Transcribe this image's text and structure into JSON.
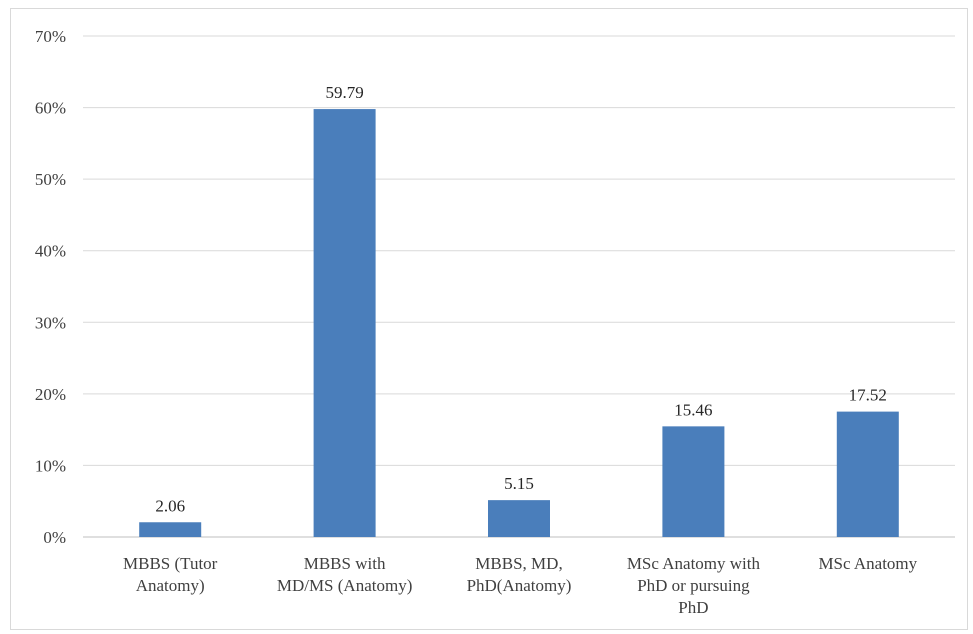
{
  "chart_data": {
    "type": "bar",
    "categories": [
      [
        "MBBS (Tutor",
        "Anatomy)"
      ],
      [
        "MBBS with",
        "MD/MS (Anatomy)"
      ],
      [
        "MBBS, MD,",
        "PhD(Anatomy)"
      ],
      [
        "MSc Anatomy with",
        "PhD or pursuing",
        "PhD"
      ],
      [
        "MSc Anatomy"
      ]
    ],
    "values": [
      2.06,
      59.79,
      5.15,
      15.46,
      17.52
    ],
    "data_labels": [
      "2.06",
      "59.79",
      "5.15",
      "15.46",
      "17.52"
    ],
    "yticks": [
      0,
      10,
      20,
      30,
      40,
      50,
      60,
      70
    ],
    "ytick_labels": [
      "0%",
      "10%",
      "20%",
      "30%",
      "40%",
      "50%",
      "60%",
      "70%"
    ],
    "ylim": [
      0,
      70
    ],
    "title": "",
    "xlabel": "",
    "ylabel": "",
    "grid": true,
    "legend": "none",
    "colors": {
      "bar": "#4a7ebb",
      "grid": "#d9d9d9",
      "axis": "#bfbfbf"
    }
  }
}
